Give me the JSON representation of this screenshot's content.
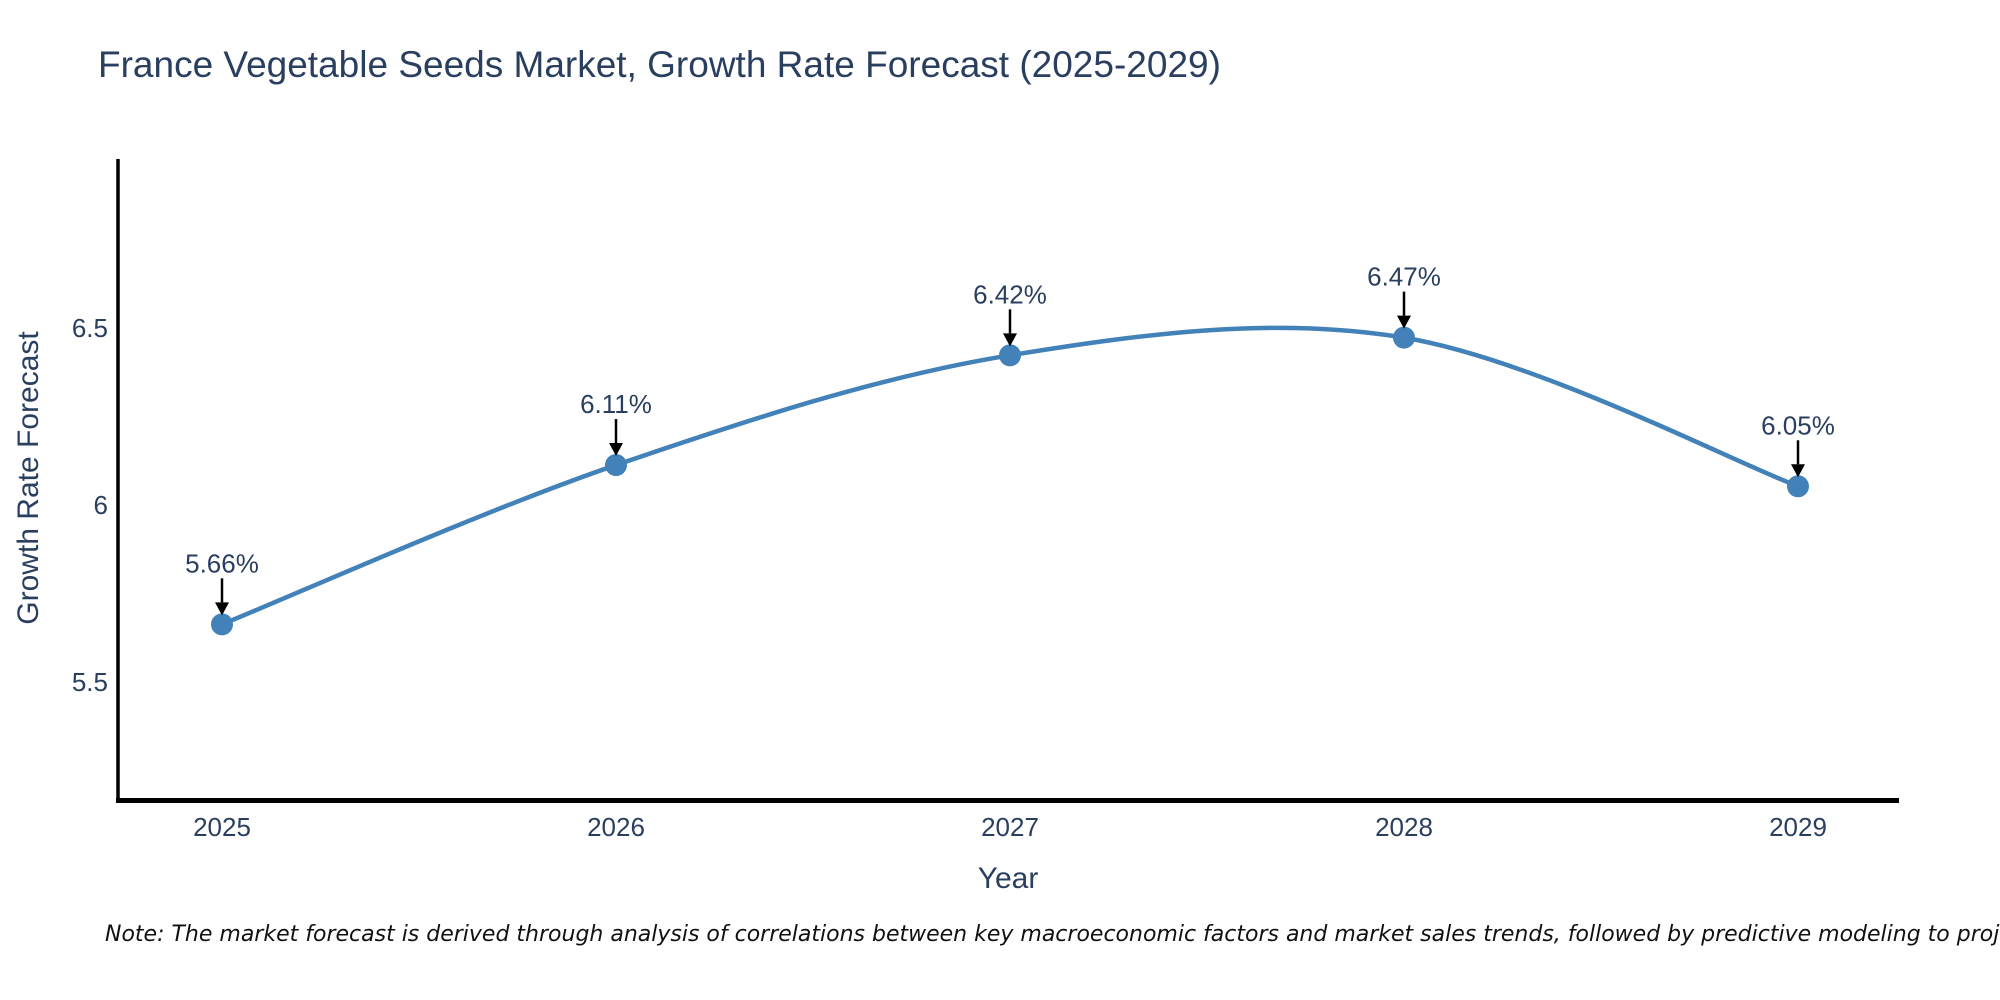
{
  "header": {
    "title": "France Vegetable Seeds Market, Growth Rate Forecast (2025-2029)"
  },
  "footer": {
    "note": "Note: The market forecast is derived through analysis of correlations between key macroeconomic factors and market sales trends, followed by predictive modeling to project future sales"
  },
  "colors": {
    "title_text": "#2a3f5f",
    "tick_text": "#2a3f5f",
    "annotation_text": "#2a3f5f",
    "line": "#4282b8",
    "marker": "#4282b8",
    "axis_spine": "#000000",
    "arrow": "#000000",
    "note_text": "#111111",
    "background": "#ffffff"
  },
  "chart_data": {
    "type": "line",
    "title": "France Vegetable Seeds Market, Growth Rate Forecast (2025-2029)",
    "xlabel": "Year",
    "ylabel": "Growth Rate Forecast",
    "categories": [
      "2025",
      "2026",
      "2027",
      "2028",
      "2029"
    ],
    "series": [
      {
        "name": "Growth Rate Forecast",
        "values": [
          5.66,
          6.11,
          6.42,
          6.47,
          6.05
        ]
      }
    ],
    "point_labels": [
      "5.66%",
      "6.11%",
      "6.42%",
      "6.47%",
      "6.05%"
    ],
    "ytick_values": [
      5.5,
      6.0,
      6.5
    ],
    "ytick_labels": [
      "5.5",
      "6",
      "6.5"
    ],
    "ylim": [
      5.15,
      6.97
    ],
    "line_shape": "spline",
    "markers": true,
    "grid": false,
    "legend_position": "none",
    "annotation_style": "down-arrow-to-point"
  }
}
